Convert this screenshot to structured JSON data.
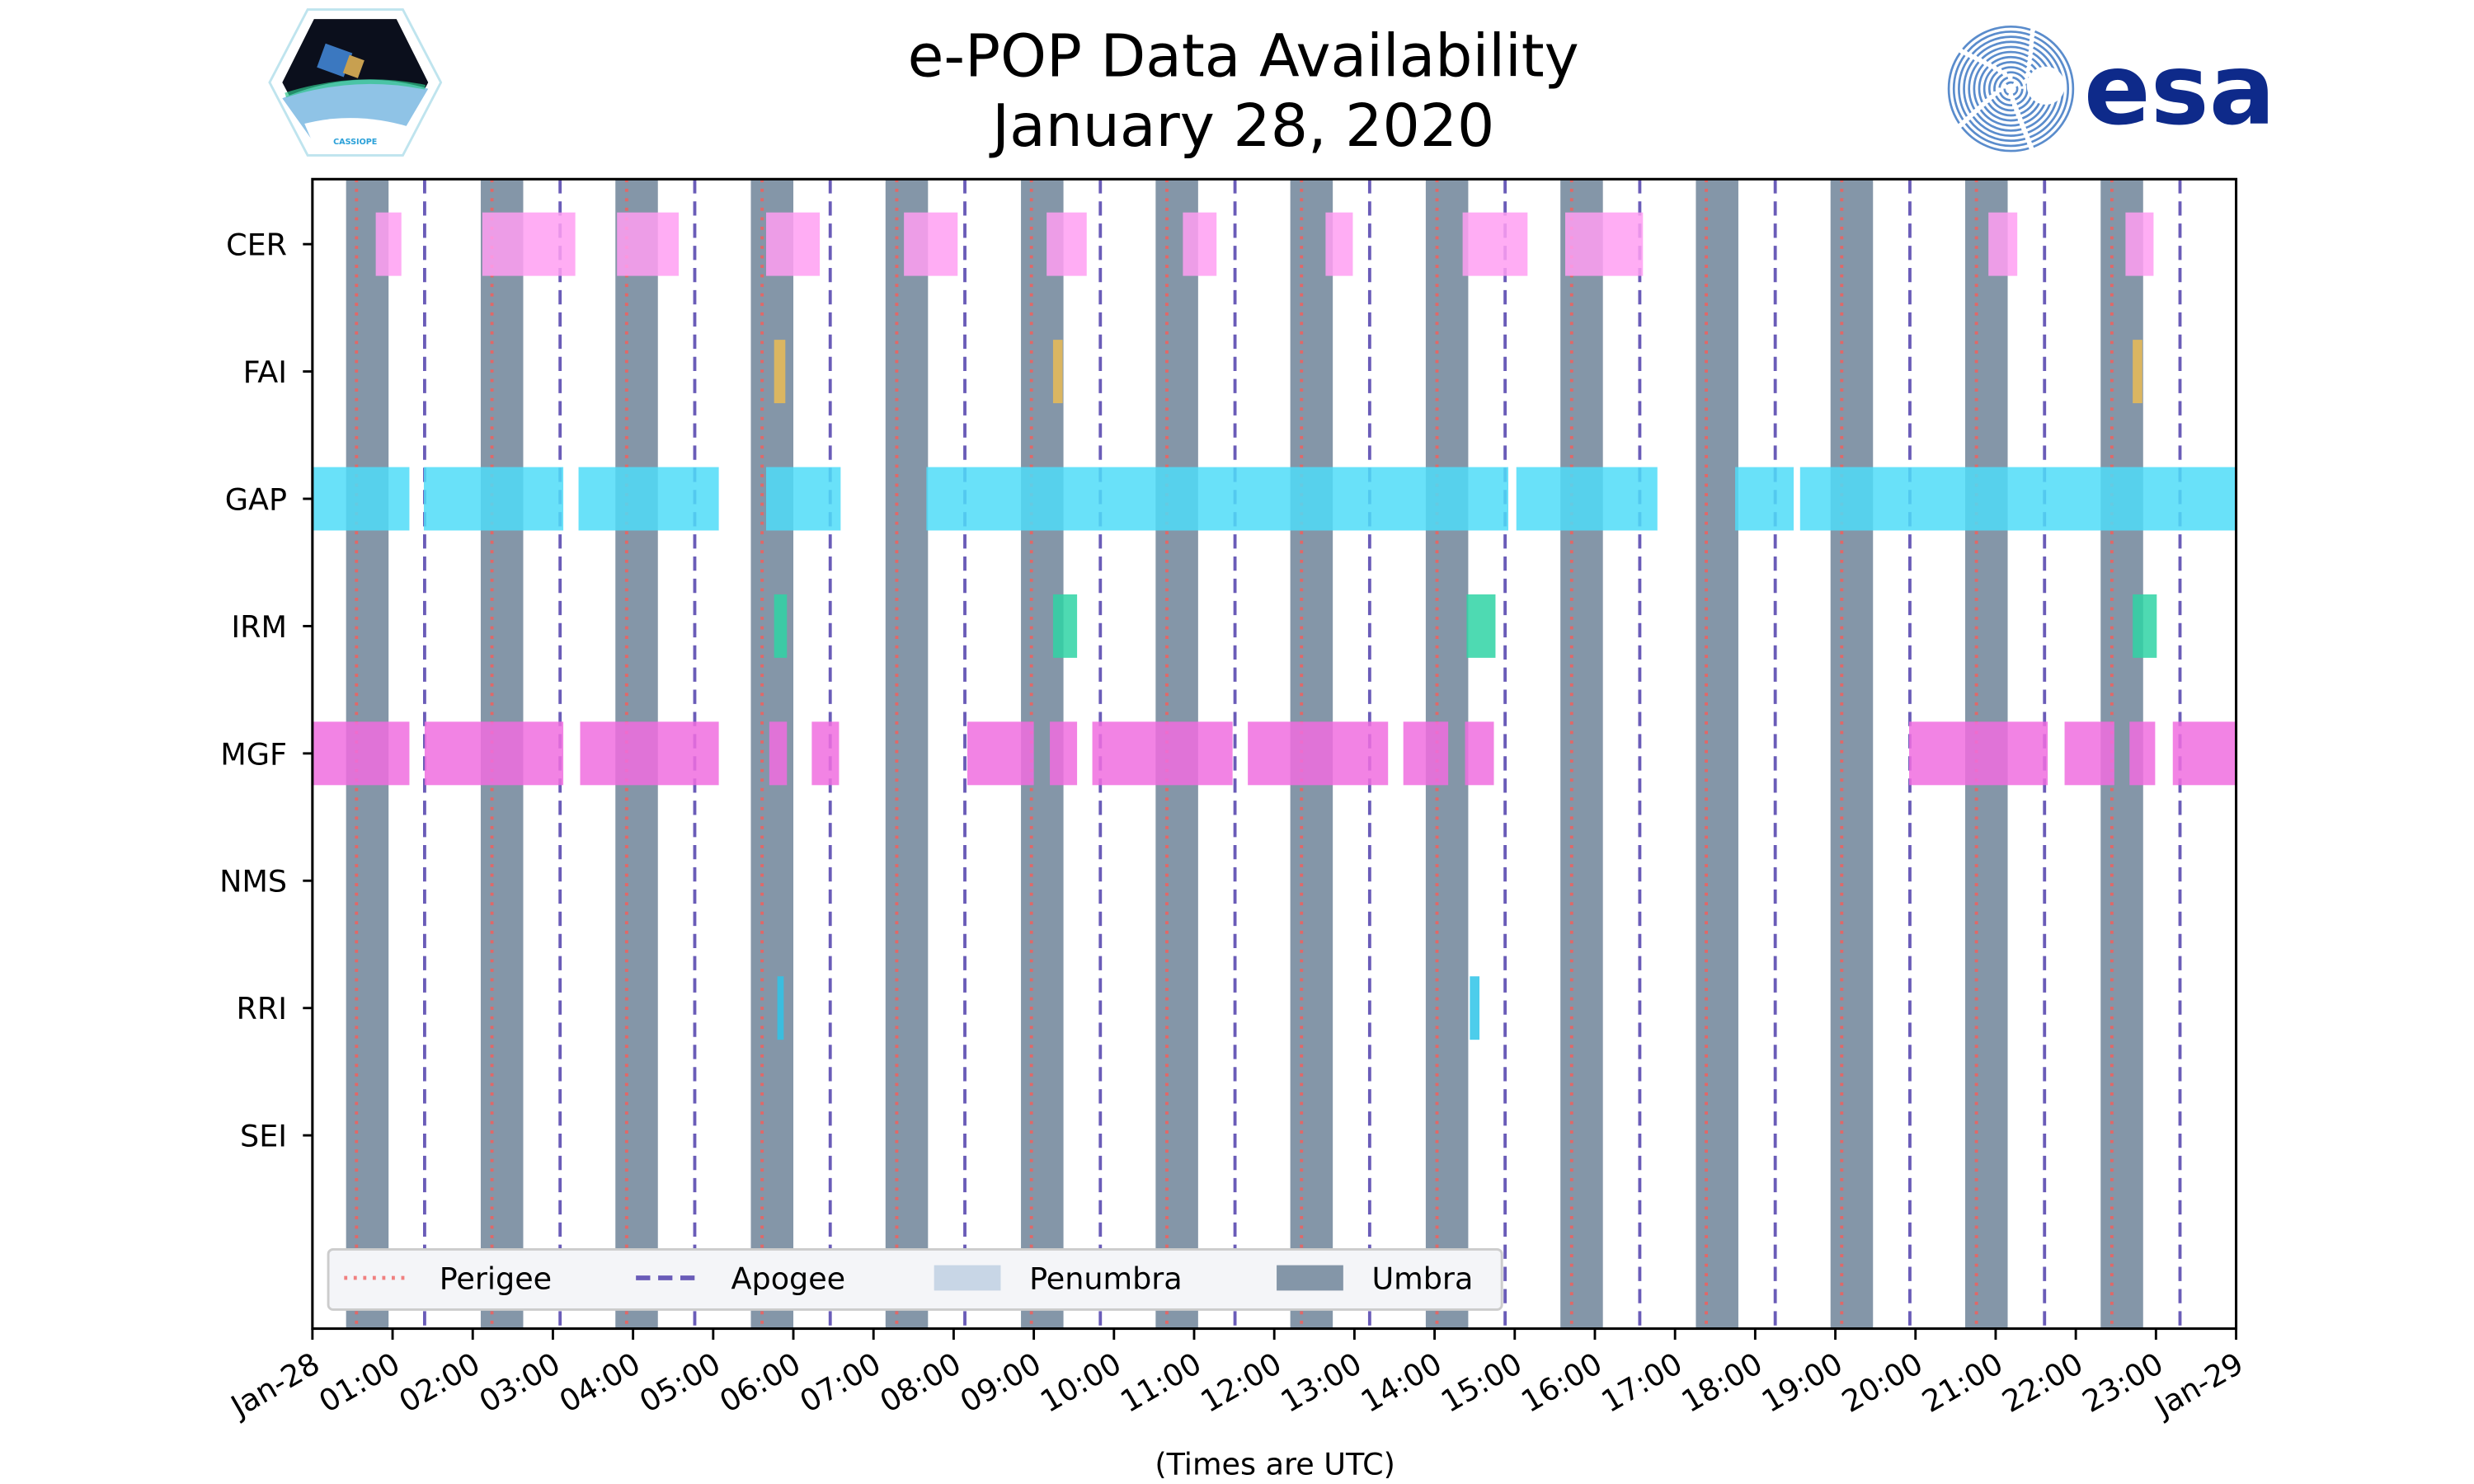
{
  "chart_data": {
    "type": "timeline",
    "title": "e-POP Data Availability",
    "subtitle": "January 28, 2020",
    "xlabel": "(Times are UTC)",
    "xlim_hours": [
      0,
      24
    ],
    "x_tick_labels": [
      "Jan-28",
      "01:00",
      "02:00",
      "03:00",
      "04:00",
      "05:00",
      "06:00",
      "07:00",
      "08:00",
      "09:00",
      "10:00",
      "11:00",
      "12:00",
      "13:00",
      "14:00",
      "15:00",
      "16:00",
      "17:00",
      "18:00",
      "19:00",
      "20:00",
      "21:00",
      "22:00",
      "23:00",
      "Jan-29"
    ],
    "instruments": [
      {
        "name": "CER",
        "color": "#ff9ff2",
        "intervals": [
          [
            0.79,
            1.11
          ],
          [
            2.12,
            3.28
          ],
          [
            3.8,
            4.57
          ],
          [
            5.66,
            6.33
          ],
          [
            7.38,
            8.05
          ],
          [
            9.16,
            9.66
          ],
          [
            10.86,
            11.28
          ],
          [
            12.64,
            12.98
          ],
          [
            14.35,
            15.16
          ],
          [
            15.63,
            16.6
          ],
          [
            20.91,
            21.27
          ],
          [
            22.62,
            22.97
          ]
        ]
      },
      {
        "name": "FAI",
        "color": "#eabc55",
        "intervals": [
          [
            5.76,
            5.9
          ],
          [
            9.24,
            9.36
          ],
          [
            22.71,
            22.83
          ]
        ]
      },
      {
        "name": "GAP",
        "color": "#4fdcf8",
        "intervals": [
          [
            0,
            1.21
          ],
          [
            1.39,
            3.13
          ],
          [
            3.32,
            5.07
          ],
          [
            5.66,
            6.59
          ],
          [
            7.66,
            14.92
          ],
          [
            15.02,
            16.78
          ],
          [
            17.75,
            18.48
          ],
          [
            18.56,
            24
          ]
        ]
      },
      {
        "name": "IRM",
        "color": "#2fd3a5",
        "intervals": [
          [
            5.76,
            5.92
          ],
          [
            9.24,
            9.54
          ],
          [
            14.4,
            14.76
          ],
          [
            22.71,
            23.01
          ]
        ]
      },
      {
        "name": "MGF",
        "color": "#f06ddf",
        "intervals": [
          [
            0,
            1.21
          ],
          [
            1.4,
            3.13
          ],
          [
            3.34,
            5.07
          ],
          [
            5.7,
            5.92
          ],
          [
            6.23,
            6.57
          ],
          [
            8.17,
            9.0
          ],
          [
            9.2,
            9.54
          ],
          [
            9.73,
            11.48
          ],
          [
            11.67,
            13.42
          ],
          [
            13.61,
            14.17
          ],
          [
            14.38,
            14.74
          ],
          [
            19.92,
            21.65
          ],
          [
            21.86,
            22.48
          ],
          [
            22.67,
            22.99
          ],
          [
            23.21,
            24
          ]
        ]
      },
      {
        "name": "NMS",
        "color": "#999999",
        "intervals": []
      },
      {
        "name": "RRI",
        "color": "#2ec4e8",
        "intervals": [
          [
            5.8,
            5.88
          ],
          [
            14.44,
            14.56
          ]
        ]
      },
      {
        "name": "SEI",
        "color": "#999999",
        "intervals": []
      }
    ],
    "umbra": {
      "color": "#8496a8",
      "duration_hours": 0.53,
      "starts": [
        0.42,
        2.1,
        3.78,
        5.47,
        7.15,
        8.84,
        10.52,
        12.2,
        13.89,
        15.57,
        17.26,
        18.94,
        20.62,
        22.31
      ]
    },
    "perigee": {
      "color": "#e06868",
      "times": [
        0.55,
        2.24,
        3.92,
        5.61,
        7.29,
        8.97,
        10.66,
        12.34,
        14.03,
        15.71,
        17.39,
        19.08,
        20.76,
        22.45
      ]
    },
    "apogee": {
      "color": "#6a5cb8",
      "times": [
        1.4,
        3.09,
        4.77,
        6.46,
        8.14,
        9.83,
        11.51,
        13.19,
        14.88,
        16.56,
        18.25,
        19.93,
        21.61,
        23.3
      ]
    },
    "legend": {
      "placement": "bottom-left",
      "entries": [
        {
          "label": "Perigee",
          "style": "dotted",
          "color": "#f08080"
        },
        {
          "label": "Apogee",
          "style": "dashed",
          "color": "#6a5cb8"
        },
        {
          "label": "Penumbra",
          "style": "patch",
          "color": "#c8d6e6"
        },
        {
          "label": "Umbra",
          "style": "patch",
          "color": "#8496a8"
        }
      ]
    }
  },
  "logos": {
    "left_text": "CASSIOPE",
    "right_text": "esa"
  }
}
